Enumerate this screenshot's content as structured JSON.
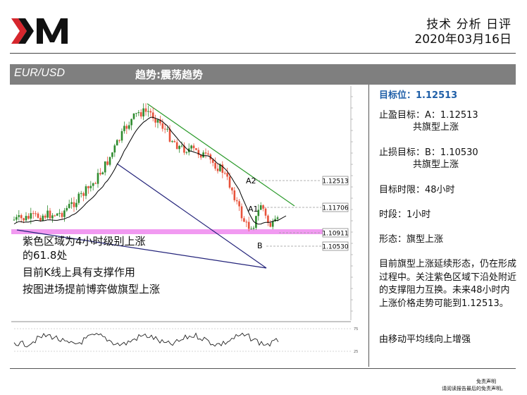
{
  "header": {
    "logo_text": "XM",
    "title": "技术 分析 日评",
    "date": "2020年03月16日"
  },
  "band": {
    "pair": "EUR/USD",
    "trend": "趋势:震荡趋势"
  },
  "chart": {
    "price_labels": {
      "a2": "1.12513",
      "a1": "1.11706",
      "support": "1.10911",
      "b": "1.10530"
    },
    "point_labels": {
      "a2": "A2",
      "a1": "A1",
      "b": "B"
    },
    "osc_ticks": [
      "75",
      "25"
    ],
    "colors": {
      "up_candle": "#2e8b2e",
      "down_candle": "#e8523a",
      "zone": "#ee88ee",
      "upper_trend": "#2a9a2a",
      "lower_trend": "#23237a"
    }
  },
  "overlay": {
    "line1": "紫色区域为4小时级别上涨",
    "line2": "的61.8处",
    "line3": "目前K线上具有支撑作用",
    "line4": "按图进场提前博弈做旗型上涨"
  },
  "side": {
    "target": "目标位：1.12513",
    "tp_line1": "止盈目标：A：1.12513",
    "tp_line2": "共旗型上涨",
    "sl_line1": "止损目标：B：1.10530",
    "sl_line2": "共旗型上涨",
    "time_limit": "目标时限：48小时",
    "timeframe": "时段：1小时",
    "pattern": "形态：旗型上涨",
    "analysis": "目前旗型上涨延续形态，仍在形成过程中。关注紫色区域下沿处附近的支撑阻力互换。未来48小时内上涨价格走势可能到1.12513。",
    "ma_note": "由移动平均线向上增强"
  },
  "footer": {
    "disclaimer_title": "免责声明",
    "disclaimer_text": "请阅读报告最后的免责声明。"
  }
}
